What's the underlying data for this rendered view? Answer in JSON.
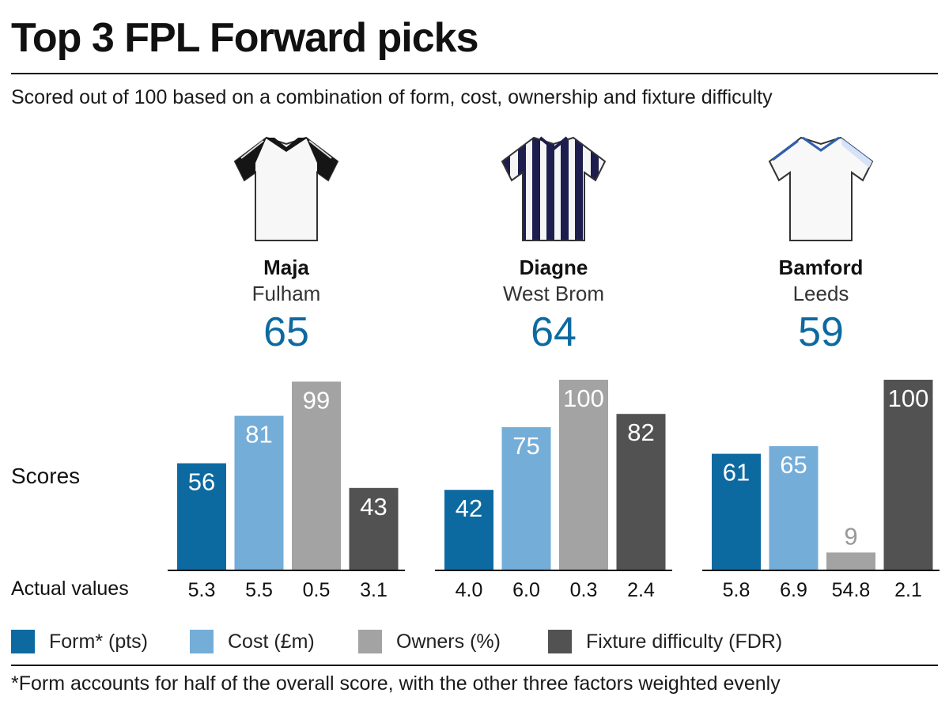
{
  "header": {
    "title": "Top 3 FPL Forward picks",
    "subtitle": "Scored out of 100 based on a combination of form, cost, ownership and fixture difficulty"
  },
  "players": [
    {
      "name": "Maja",
      "team": "Fulham",
      "score": "65",
      "shirt_icon": "fulham-shirt-icon"
    },
    {
      "name": "Diagne",
      "team": "West Brom",
      "score": "64",
      "shirt_icon": "west-brom-shirt-icon"
    },
    {
      "name": "Bamford",
      "team": "Leeds",
      "score": "59",
      "shirt_icon": "leeds-shirt-icon"
    }
  ],
  "labels": {
    "scores": "Scores",
    "actual_values": "Actual values"
  },
  "legend": [
    {
      "label": "Form* (pts)",
      "color": "#0d6aa1"
    },
    {
      "label": "Cost (£m)",
      "color": "#74add8"
    },
    {
      "label": "Owners (%)",
      "color": "#a3a3a3"
    },
    {
      "label": "Fixture difficulty (FDR)",
      "color": "#525252"
    }
  ],
  "footnote": "*Form accounts for half of the overall score, with the other three factors weighted evenly",
  "chart_data": {
    "type": "bar",
    "categories": [
      "Form* (pts)",
      "Cost (£m)",
      "Owners (%)",
      "Fixture difficulty (FDR)"
    ],
    "ylim": [
      0,
      100
    ],
    "grid": false,
    "legend_position": "bottom",
    "groups": [
      {
        "player": "Maja",
        "scores": [
          56,
          81,
          99,
          43
        ],
        "actual": [
          "5.3",
          "5.5",
          "0.5",
          "3.1"
        ]
      },
      {
        "player": "Diagne",
        "scores": [
          42,
          75,
          100,
          82
        ],
        "actual": [
          "4.0",
          "6.0",
          "0.3",
          "2.4"
        ]
      },
      {
        "player": "Bamford",
        "scores": [
          61,
          65,
          9,
          100
        ],
        "actual": [
          "5.8",
          "6.9",
          "54.8",
          "2.1"
        ]
      }
    ]
  }
}
